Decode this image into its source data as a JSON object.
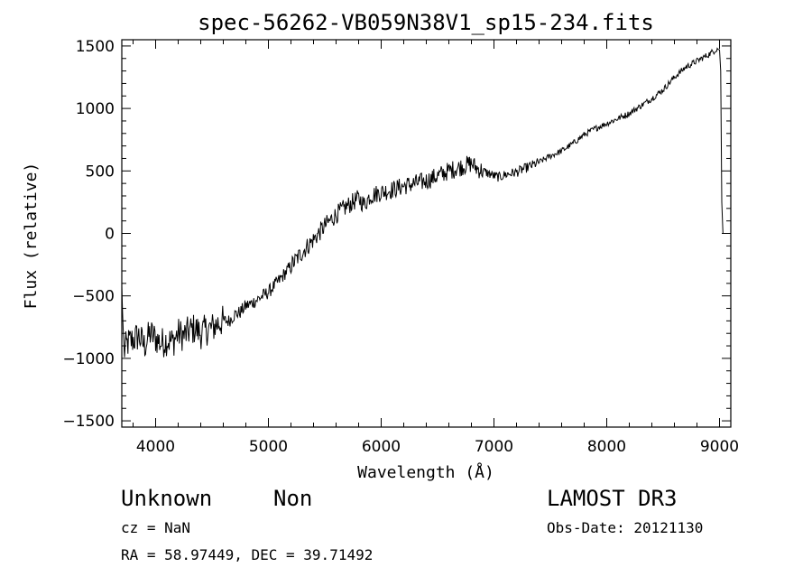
{
  "chart_data": {
    "type": "line",
    "title": "spec-56262-VB059N38V1_sp15-234.fits",
    "xlabel": "Wavelength (Å)",
    "ylabel": "Flux (relative)",
    "xlim": [
      3700,
      9100
    ],
    "ylim": [
      -1550,
      1550
    ],
    "xticks": [
      4000,
      5000,
      6000,
      7000,
      8000,
      9000
    ],
    "yticks": [
      -1500,
      -1000,
      -500,
      0,
      500,
      1000,
      1500
    ],
    "xtick_labels": [
      "4000",
      "5000",
      "6000",
      "7000",
      "8000",
      "9000"
    ],
    "ytick_labels": [
      "-1500",
      "-1000",
      "-500",
      "0",
      "500",
      "1000",
      "1500"
    ],
    "grid": false,
    "series": [
      {
        "x": [
          3700,
          3705,
          3720,
          3750,
          3800,
          3850,
          3900,
          3950,
          4000,
          4050,
          4100,
          4150,
          4200,
          4250,
          4300,
          4350,
          4400,
          4450,
          4500,
          4550,
          4600,
          4650,
          4700,
          4750,
          4800,
          4850,
          4900,
          4950,
          5000,
          5100,
          5200,
          5300,
          5400,
          5500,
          5600,
          5700,
          5800,
          5850,
          5900,
          6000,
          6100,
          6200,
          6300,
          6400,
          6500,
          6600,
          6700,
          6800,
          6850,
          6900,
          6950,
          7000,
          7050,
          7100,
          7200,
          7300,
          7400,
          7500,
          7600,
          7700,
          7800,
          7900,
          8000,
          8100,
          8200,
          8300,
          8400,
          8500,
          8600,
          8700,
          8800,
          8900,
          8950,
          8980,
          9000,
          9010,
          9020,
          9030
        ],
        "y": [
          -420,
          -600,
          -950,
          -880,
          -850,
          -820,
          -900,
          -800,
          -840,
          -880,
          -850,
          -870,
          -800,
          -820,
          -780,
          -760,
          -800,
          -770,
          -760,
          -720,
          -700,
          -700,
          -650,
          -630,
          -580,
          -560,
          -530,
          -500,
          -470,
          -370,
          -260,
          -150,
          -50,
          60,
          150,
          220,
          280,
          230,
          300,
          330,
          350,
          380,
          400,
          420,
          460,
          500,
          530,
          560,
          520,
          500,
          480,
          460,
          450,
          470,
          490,
          530,
          570,
          620,
          660,
          720,
          790,
          840,
          880,
          920,
          960,
          1020,
          1080,
          1150,
          1250,
          1330,
          1380,
          1430,
          1460,
          1480,
          1470,
          1300,
          250,
          0
        ]
      }
    ]
  },
  "footer": {
    "object_class": "Unknown",
    "subclass": "Non",
    "survey": "LAMOST DR3",
    "redshift": "cz = NaN",
    "obs_date": "Obs-Date: 20121130",
    "coords": "RA =  58.97449, DEC =  39.71492"
  }
}
